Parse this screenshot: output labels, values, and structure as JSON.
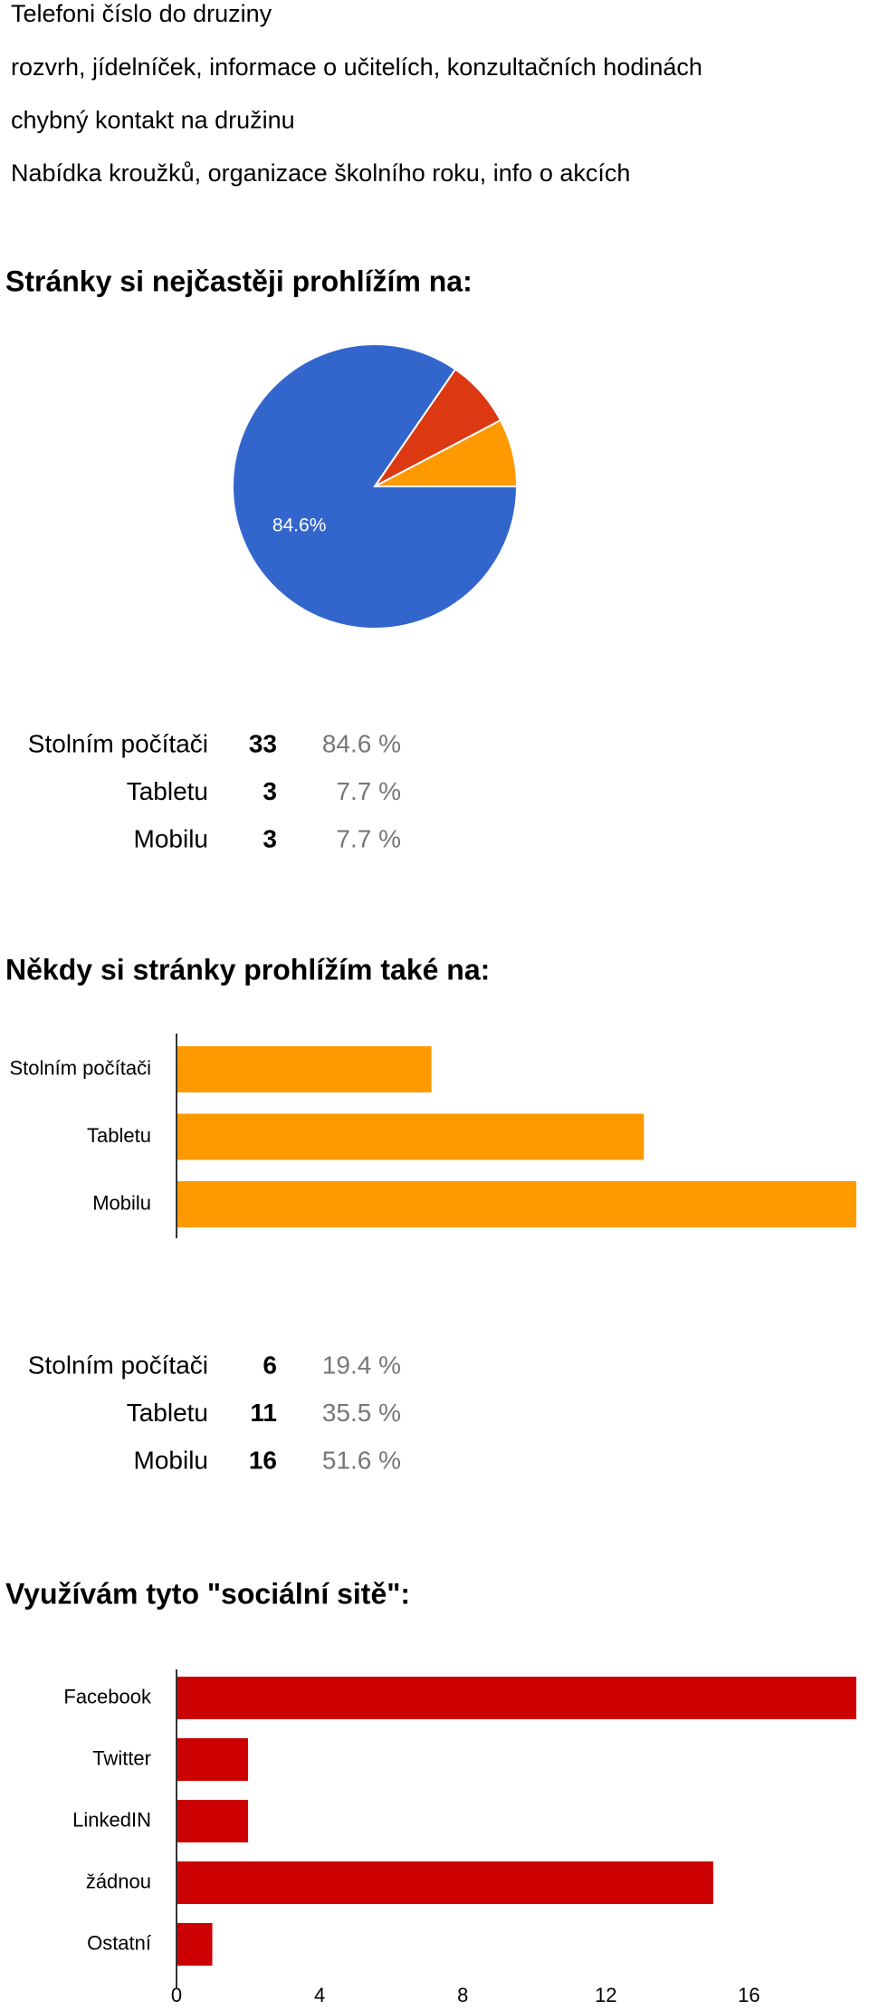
{
  "responses": [
    "Telefoni číslo do druziny",
    "rozvrh, jídelníček, informace o učitelích, konzultačních hodinách",
    "chybný kontakt na družinu",
    "Nabídka kroužků, organizace školního roku, info o akcích"
  ],
  "chart_data": [
    {
      "type": "pie",
      "title": "Stránky si nejčastěji prohlížím na:",
      "categories": [
        "Stolním počítači",
        "Tabletu",
        "Mobilu"
      ],
      "values": [
        84.6,
        7.7,
        7.7
      ],
      "value_labels": [
        "84.6%",
        null,
        null
      ],
      "colors": [
        "#3366cc",
        "#dc3912",
        "#ff9900"
      ]
    },
    {
      "type": "bar",
      "orientation": "horizontal",
      "title": "Někdy si stránky prohlížím také na:",
      "categories": [
        "Stolním počítači",
        "Tabletu",
        "Mobilu"
      ],
      "values": [
        6,
        11,
        16
      ],
      "color": "#ff9900",
      "xlim": [
        0,
        16
      ]
    },
    {
      "type": "bar",
      "orientation": "horizontal",
      "title": "Využívám tyto \"sociální sitě\":",
      "categories": [
        "Facebook",
        "Twitter",
        "LinkedIN",
        "žádnou",
        "Ostatní"
      ],
      "values": [
        19,
        2,
        2,
        15,
        1
      ],
      "color": "#cc0000",
      "xlim": [
        0,
        19
      ],
      "xticks": [
        0,
        4,
        8,
        12,
        16
      ]
    }
  ],
  "tables": [
    {
      "chart": 0,
      "rows": [
        {
          "count": 33,
          "percent": "84.6 %"
        },
        {
          "count": 3,
          "percent": "7.7 %"
        },
        {
          "count": 3,
          "percent": "7.7 %"
        }
      ]
    },
    {
      "chart": 1,
      "rows": [
        {
          "count": 6,
          "percent": "19.4 %"
        },
        {
          "count": 11,
          "percent": "35.5 %"
        },
        {
          "count": 16,
          "percent": "51.6 %"
        }
      ]
    }
  ]
}
